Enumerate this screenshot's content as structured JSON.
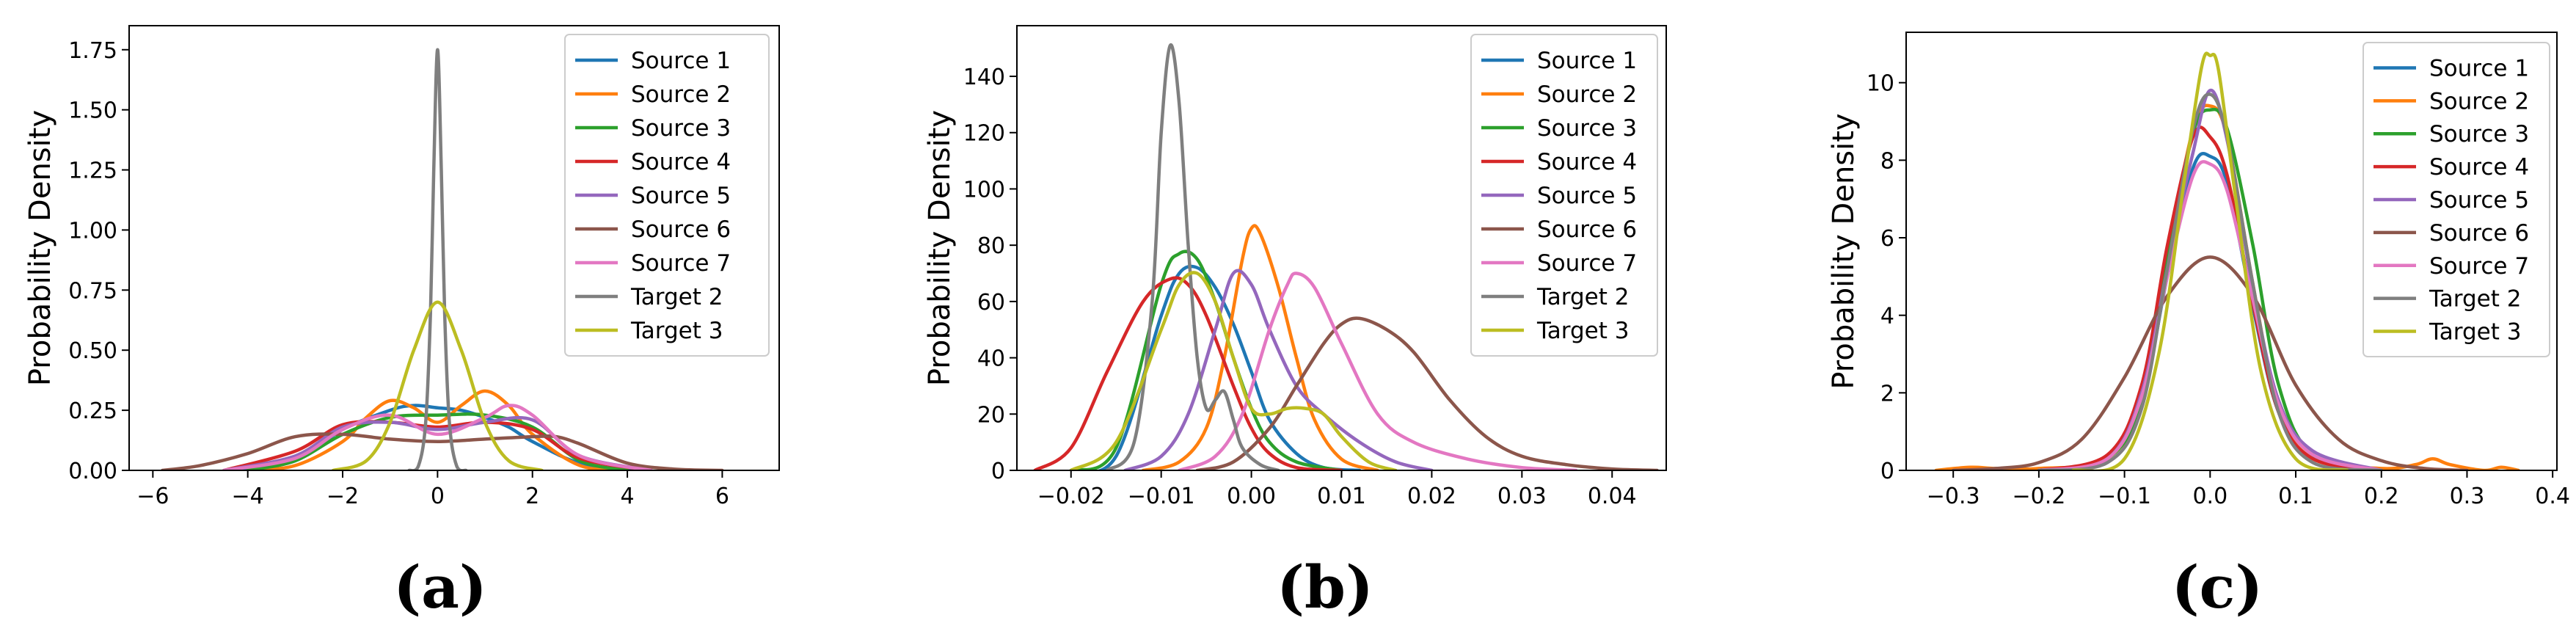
{
  "chart_data": [
    {
      "type": "line",
      "caption": "(a)",
      "ylabel": "Probability Density",
      "xlabel": "",
      "xlim": [
        -6.5,
        7.2
      ],
      "ylim": [
        0,
        1.85
      ],
      "xticks": [
        -6,
        -4,
        -2,
        0,
        2,
        4,
        6
      ],
      "xtick_labels": [
        "−6",
        "−4",
        "−2",
        "0",
        "2",
        "4",
        "6"
      ],
      "yticks": [
        0,
        0.25,
        0.5,
        0.75,
        1.0,
        1.25,
        1.5,
        1.75
      ],
      "ytick_labels": [
        "0.00",
        "0.25",
        "0.50",
        "0.75",
        "1.00",
        "1.25",
        "1.50",
        "1.75"
      ],
      "legend_position": "top-right",
      "grid": false,
      "series": [
        {
          "name": "Source 1",
          "color": "#1f77b4",
          "x": [
            -4.2,
            -3,
            -2,
            -1,
            -0.5,
            0,
            0.5,
            1,
            1.5,
            2,
            3,
            4.2
          ],
          "y": [
            0,
            0.04,
            0.17,
            0.25,
            0.27,
            0.26,
            0.25,
            0.22,
            0.18,
            0.12,
            0.03,
            0
          ]
        },
        {
          "name": "Source 2",
          "color": "#ff7f0e",
          "x": [
            -4,
            -3,
            -2,
            -1.5,
            -1,
            -0.5,
            0,
            0.5,
            1,
            1.5,
            2,
            3,
            4
          ],
          "y": [
            0,
            0.02,
            0.12,
            0.22,
            0.29,
            0.26,
            0.2,
            0.27,
            0.33,
            0.27,
            0.15,
            0.02,
            0
          ]
        },
        {
          "name": "Source 3",
          "color": "#2ca02c",
          "x": [
            -4,
            -3,
            -2,
            -1,
            0,
            1,
            2,
            3,
            4
          ],
          "y": [
            0,
            0.04,
            0.15,
            0.22,
            0.23,
            0.23,
            0.18,
            0.04,
            0
          ]
        },
        {
          "name": "Source 4",
          "color": "#d62728",
          "x": [
            -4.5,
            -3,
            -2,
            -1,
            0,
            1,
            2,
            3,
            4.5
          ],
          "y": [
            0,
            0.08,
            0.19,
            0.2,
            0.18,
            0.2,
            0.17,
            0.05,
            0
          ]
        },
        {
          "name": "Source 5",
          "color": "#9467bd",
          "x": [
            -4.5,
            -3,
            -2,
            -1,
            0,
            1,
            2,
            3,
            4.5
          ],
          "y": [
            0,
            0.06,
            0.18,
            0.2,
            0.17,
            0.2,
            0.21,
            0.06,
            0
          ]
        },
        {
          "name": "Source 6",
          "color": "#8c564b",
          "x": [
            -5.8,
            -5,
            -4,
            -3,
            -2,
            -1,
            0,
            1,
            2,
            2.5,
            3,
            4,
            5,
            6
          ],
          "y": [
            0,
            0.02,
            0.07,
            0.14,
            0.15,
            0.13,
            0.12,
            0.13,
            0.14,
            0.14,
            0.11,
            0.03,
            0.005,
            0
          ]
        },
        {
          "name": "Source 7",
          "color": "#e377c2",
          "x": [
            -4.5,
            -3,
            -2,
            -1,
            0,
            1,
            1.5,
            2,
            3,
            4.5
          ],
          "y": [
            0,
            0.05,
            0.17,
            0.23,
            0.15,
            0.22,
            0.27,
            0.23,
            0.06,
            0
          ]
        },
        {
          "name": "Target 2",
          "color": "#7f7f7f",
          "x": [
            -0.6,
            -0.4,
            -0.25,
            -0.15,
            -0.08,
            0,
            0.08,
            0.15,
            0.25,
            0.4,
            0.6
          ],
          "y": [
            0,
            0.02,
            0.2,
            0.65,
            1.25,
            1.75,
            1.25,
            0.65,
            0.2,
            0.02,
            0
          ]
        },
        {
          "name": "Target 3",
          "color": "#bcbd22",
          "x": [
            -2.2,
            -1.5,
            -1,
            -0.5,
            0,
            0.5,
            1,
            1.5,
            2.2
          ],
          "y": [
            0,
            0.04,
            0.2,
            0.5,
            0.7,
            0.5,
            0.2,
            0.04,
            0
          ]
        }
      ]
    },
    {
      "type": "line",
      "caption": "(b)",
      "ylabel": "Probability Density",
      "xlabel": "",
      "xlim": [
        -0.026,
        0.046
      ],
      "ylim": [
        0,
        158
      ],
      "xticks": [
        -0.02,
        -0.01,
        0.0,
        0.01,
        0.02,
        0.03,
        0.04
      ],
      "xtick_labels": [
        "−0.02",
        "−0.01",
        "0.00",
        "0.01",
        "0.02",
        "0.03",
        "0.04"
      ],
      "yticks": [
        0,
        20,
        40,
        60,
        80,
        100,
        120,
        140
      ],
      "ytick_labels": [
        "0",
        "20",
        "40",
        "60",
        "80",
        "100",
        "120",
        "140"
      ],
      "legend_position": "top-right",
      "grid": false,
      "series": [
        {
          "name": "Source 1",
          "color": "#1f77b4",
          "x": [
            -0.02,
            -0.015,
            -0.01,
            -0.008,
            -0.006,
            -0.004,
            -0.002,
            0,
            0.002,
            0.005,
            0.008,
            0.012
          ],
          "y": [
            0,
            5,
            55,
            70,
            72,
            65,
            52,
            35,
            18,
            6,
            1,
            0
          ]
        },
        {
          "name": "Source 2",
          "color": "#ff7f0e",
          "x": [
            -0.012,
            -0.008,
            -0.005,
            -0.003,
            -0.001,
            0,
            0.001,
            0.003,
            0.005,
            0.007,
            0.01,
            0.014
          ],
          "y": [
            0,
            3,
            15,
            40,
            75,
            86,
            84,
            65,
            40,
            18,
            4,
            0
          ]
        },
        {
          "name": "Source 3",
          "color": "#2ca02c",
          "x": [
            -0.02,
            -0.015,
            -0.01,
            -0.008,
            -0.006,
            -0.004,
            -0.002,
            0,
            0.002,
            0.005,
            0.01
          ],
          "y": [
            0,
            8,
            66,
            77,
            75,
            60,
            40,
            22,
            10,
            3,
            0
          ]
        },
        {
          "name": "Source 4",
          "color": "#d62728",
          "x": [
            -0.024,
            -0.02,
            -0.016,
            -0.012,
            -0.009,
            -0.007,
            -0.005,
            -0.002,
            0,
            0.002,
            0.005,
            0.01
          ],
          "y": [
            0,
            8,
            35,
            60,
            68,
            66,
            55,
            30,
            15,
            6,
            1,
            0
          ]
        },
        {
          "name": "Source 5",
          "color": "#9467bd",
          "x": [
            -0.014,
            -0.01,
            -0.007,
            -0.004,
            -0.002,
            0,
            0.002,
            0.005,
            0.008,
            0.012,
            0.016,
            0.02
          ],
          "y": [
            0,
            5,
            20,
            50,
            70,
            66,
            50,
            30,
            20,
            10,
            3,
            0
          ]
        },
        {
          "name": "Source 6",
          "color": "#8c564b",
          "x": [
            -0.006,
            -0.002,
            0.002,
            0.005,
            0.008,
            0.01,
            0.012,
            0.015,
            0.018,
            0.022,
            0.026,
            0.03,
            0.035,
            0.04,
            0.045
          ],
          "y": [
            0,
            3,
            15,
            30,
            45,
            52,
            54,
            50,
            42,
            25,
            12,
            5,
            2,
            0.5,
            0
          ]
        },
        {
          "name": "Source 7",
          "color": "#e377c2",
          "x": [
            -0.008,
            -0.004,
            -0.001,
            0.002,
            0.004,
            0.005,
            0.007,
            0.01,
            0.014,
            0.018,
            0.024,
            0.03,
            0.036
          ],
          "y": [
            0,
            5,
            20,
            50,
            66,
            70,
            65,
            45,
            20,
            10,
            4,
            1,
            0
          ]
        },
        {
          "name": "Target 2",
          "color": "#7f7f7f",
          "x": [
            -0.016,
            -0.013,
            -0.011,
            -0.01,
            -0.009,
            -0.008,
            -0.007,
            -0.006,
            -0.005,
            -0.004,
            -0.003,
            -0.002,
            -0.001,
            0.001,
            0.003
          ],
          "y": [
            0,
            10,
            60,
            120,
            151,
            130,
            80,
            40,
            22,
            25,
            28,
            18,
            8,
            2,
            0
          ]
        },
        {
          "name": "Target 3",
          "color": "#bcbd22",
          "x": [
            -0.02,
            -0.015,
            -0.01,
            -0.008,
            -0.006,
            -0.004,
            -0.002,
            0,
            0.002,
            0.004,
            0.006,
            0.008,
            0.01,
            0.013,
            0.016
          ],
          "y": [
            0,
            10,
            50,
            66,
            70,
            60,
            40,
            22,
            20,
            22,
            22,
            20,
            12,
            3,
            0
          ]
        }
      ]
    },
    {
      "type": "line",
      "caption": "(c)",
      "ylabel": "Probability Density",
      "xlabel": "",
      "xlim": [
        -0.355,
        0.405
      ],
      "ylim": [
        0,
        11.3
      ],
      "xticks": [
        -0.3,
        -0.2,
        -0.1,
        0.0,
        0.1,
        0.2,
        0.3,
        0.4
      ],
      "xtick_labels": [
        "−0.3",
        "−0.2",
        "−0.1",
        "0.0",
        "0.1",
        "0.2",
        "0.3",
        "0.4"
      ],
      "yticks": [
        0,
        2,
        4,
        6,
        8,
        10
      ],
      "ytick_labels": [
        "0",
        "2",
        "4",
        "6",
        "8",
        "10"
      ],
      "legend_position": "top-right",
      "grid": false,
      "series": [
        {
          "name": "Source 1",
          "color": "#1f77b4",
          "x": [
            -0.2,
            -0.12,
            -0.08,
            -0.05,
            -0.02,
            0,
            0.02,
            0.05,
            0.08,
            0.12,
            0.2
          ],
          "y": [
            0,
            0.3,
            1.8,
            5.0,
            7.8,
            8.1,
            7.4,
            4.2,
            1.5,
            0.3,
            0
          ]
        },
        {
          "name": "Source 2",
          "color": "#ff7f0e",
          "x": [
            -0.32,
            -0.28,
            -0.25,
            -0.2,
            -0.12,
            -0.08,
            -0.05,
            -0.02,
            0,
            0.02,
            0.05,
            0.08,
            0.12,
            0.2,
            0.24,
            0.26,
            0.28,
            0.32,
            0.34,
            0.36
          ],
          "y": [
            0,
            0.08,
            0.05,
            0.05,
            0.3,
            1.8,
            5.5,
            8.8,
            9.4,
            8.6,
            4.8,
            1.6,
            0.3,
            0.05,
            0.15,
            0.3,
            0.15,
            0,
            0.08,
            0
          ]
        },
        {
          "name": "Source 3",
          "color": "#2ca02c",
          "x": [
            -0.2,
            -0.12,
            -0.08,
            -0.05,
            -0.02,
            0,
            0.02,
            0.05,
            0.08,
            0.12,
            0.2
          ],
          "y": [
            0,
            0.3,
            1.8,
            5.4,
            8.7,
            9.3,
            8.8,
            5.8,
            2.2,
            0.4,
            0
          ]
        },
        {
          "name": "Source 4",
          "color": "#d62728",
          "x": [
            -0.2,
            -0.12,
            -0.08,
            -0.05,
            -0.02,
            0,
            0.02,
            0.05,
            0.08,
            0.12,
            0.2
          ],
          "y": [
            0,
            0.4,
            2.2,
            5.8,
            8.6,
            8.6,
            7.6,
            4.3,
            1.5,
            0.3,
            0
          ]
        },
        {
          "name": "Source 5",
          "color": "#9467bd",
          "x": [
            -0.2,
            -0.12,
            -0.08,
            -0.05,
            -0.02,
            0,
            0.02,
            0.05,
            0.08,
            0.12,
            0.2
          ],
          "y": [
            0,
            0.3,
            2.0,
            5.2,
            8.2,
            9.8,
            8.5,
            4.7,
            1.8,
            0.5,
            0
          ]
        },
        {
          "name": "Source 6",
          "color": "#8c564b",
          "x": [
            -0.3,
            -0.25,
            -0.2,
            -0.15,
            -0.1,
            -0.05,
            0,
            0.05,
            0.1,
            0.15,
            0.2,
            0.25,
            0.3
          ],
          "y": [
            0,
            0.05,
            0.2,
            0.8,
            2.4,
            4.5,
            5.5,
            4.5,
            2.2,
            0.8,
            0.25,
            0.05,
            0
          ]
        },
        {
          "name": "Source 7",
          "color": "#e377c2",
          "x": [
            -0.2,
            -0.12,
            -0.08,
            -0.05,
            -0.02,
            0,
            0.02,
            0.05,
            0.08,
            0.12,
            0.2
          ],
          "y": [
            0,
            0.3,
            1.9,
            5.0,
            7.6,
            7.9,
            7.2,
            4.4,
            1.7,
            0.4,
            0
          ]
        },
        {
          "name": "Target 2",
          "color": "#7f7f7f",
          "x": [
            -0.2,
            -0.12,
            -0.08,
            -0.05,
            -0.02,
            0,
            0.02,
            0.05,
            0.08,
            0.12,
            0.2
          ],
          "y": [
            0,
            0.2,
            1.6,
            5.2,
            8.8,
            9.7,
            8.6,
            4.8,
            1.5,
            0.2,
            0
          ]
        },
        {
          "name": "Target 3",
          "color": "#bcbd22",
          "x": [
            -0.16,
            -0.1,
            -0.06,
            -0.03,
            -0.01,
            0,
            0.01,
            0.03,
            0.06,
            0.1,
            0.16
          ],
          "y": [
            0,
            0.3,
            3.0,
            7.5,
            10.4,
            10.7,
            10.3,
            7.0,
            2.5,
            0.3,
            0
          ]
        }
      ]
    }
  ]
}
